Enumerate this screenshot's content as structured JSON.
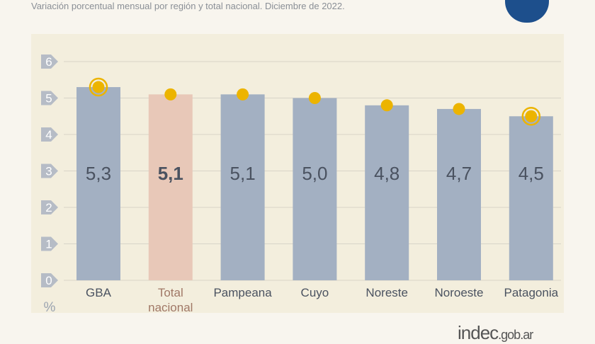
{
  "subtitle": "Variación porcentual mensual por región y total nacional. Diciembre de 2022.",
  "logo_text": "indec.gob.ar",
  "colors": {
    "bar": "#a3b0c2",
    "bar_highlight": "#e8c8b8",
    "dot": "#ecb400",
    "tick_bg": "#b6bcc6",
    "label": "#4a5260",
    "highlight_label": "#a07866",
    "grid": "#d8d4c8"
  },
  "chart_data": {
    "type": "bar",
    "categories": [
      "GBA",
      "Total\nnacional",
      "Pampeana",
      "Cuyo",
      "Noreste",
      "Noroeste",
      "Patagonia"
    ],
    "values": [
      5.3,
      5.1,
      5.1,
      5.0,
      4.8,
      4.7,
      4.5
    ],
    "value_labels": [
      "5,3",
      "5,1",
      "5,1",
      "5,0",
      "4,8",
      "4,7",
      "4,5"
    ],
    "highlight_index": 1,
    "ringed_indices": [
      0,
      6
    ],
    "ylabel": "%",
    "ylim": [
      0,
      6
    ],
    "yticks": [
      0,
      1,
      2,
      3,
      4,
      5,
      6
    ],
    "grid": true
  }
}
